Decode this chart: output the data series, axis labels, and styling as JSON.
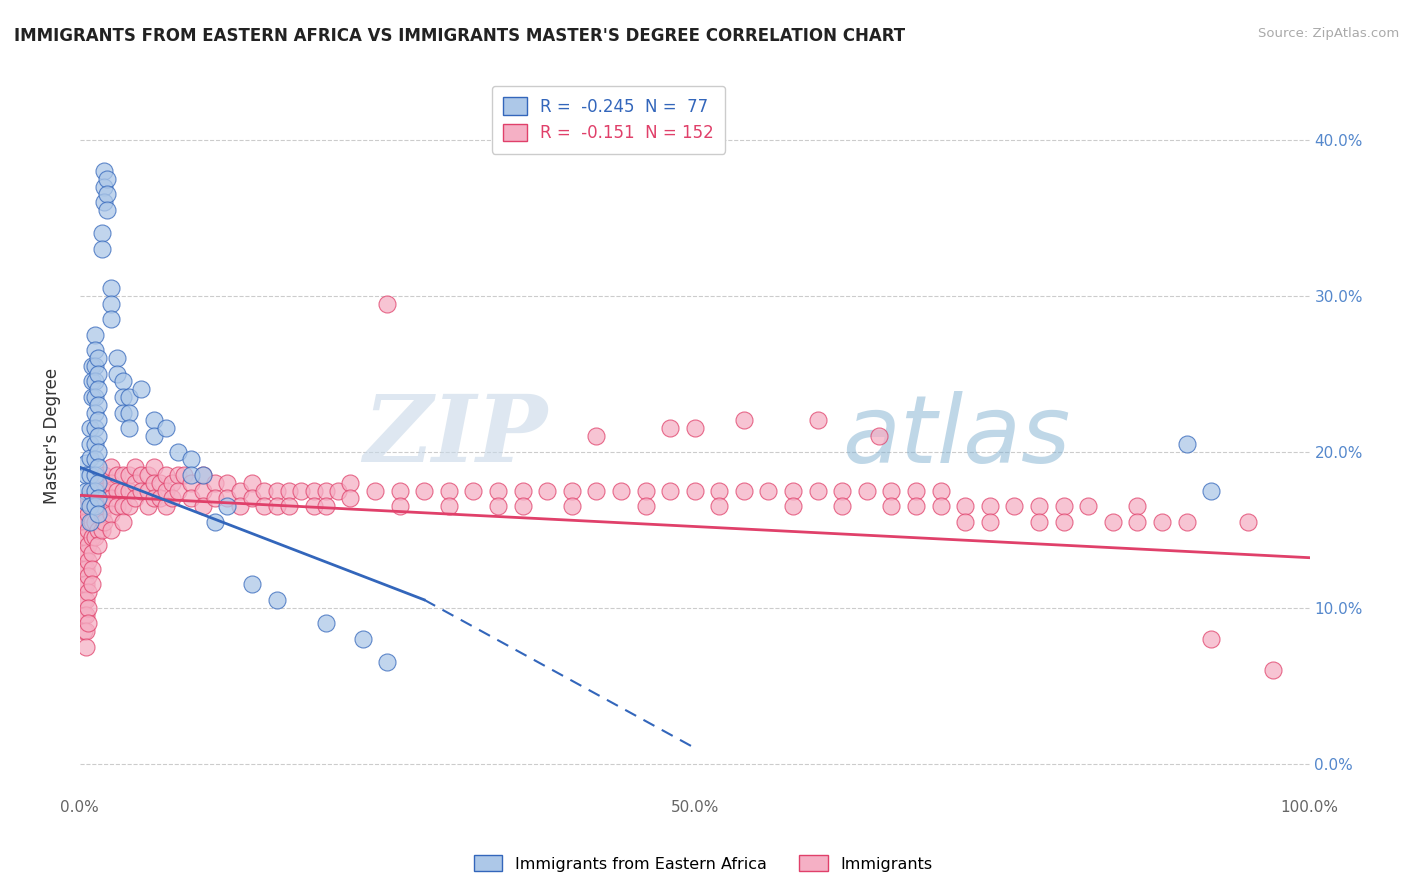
{
  "title": "IMMIGRANTS FROM EASTERN AFRICA VS IMMIGRANTS MASTER'S DEGREE CORRELATION CHART",
  "source": "Source: ZipAtlas.com",
  "ylabel": "Master's Degree",
  "xlim": [
    0.0,
    1.0
  ],
  "ylim": [
    -0.02,
    0.44
  ],
  "right_yticks": [
    0.0,
    0.1,
    0.2,
    0.3,
    0.4
  ],
  "right_yticklabels": [
    "0.0%",
    "10.0%",
    "20.0%",
    "30.0%",
    "40.0%"
  ],
  "xticks": [
    0.0,
    0.25,
    0.5,
    0.75,
    1.0
  ],
  "xticklabels": [
    "0.0%",
    "",
    "50.0%",
    "",
    "100.0%"
  ],
  "blue_R": -0.245,
  "blue_N": 77,
  "pink_R": -0.151,
  "pink_N": 152,
  "blue_color": "#adc8e8",
  "pink_color": "#f5b0c5",
  "blue_line_color": "#3366bb",
  "pink_line_color": "#e0406a",
  "watermark_zip": "ZIP",
  "watermark_atlas": "atlas",
  "legend_label_blue": "Immigrants from Eastern Africa",
  "legend_label_pink": "Immigrants",
  "blue_line_solid": [
    [
      0.0,
      0.19
    ],
    [
      0.28,
      0.105
    ]
  ],
  "blue_line_dash": [
    [
      0.28,
      0.105
    ],
    [
      0.5,
      0.01
    ]
  ],
  "pink_line": [
    [
      0.0,
      0.172
    ],
    [
      1.0,
      0.132
    ]
  ],
  "blue_scatter": [
    [
      0.005,
      0.193
    ],
    [
      0.005,
      0.185
    ],
    [
      0.005,
      0.175
    ],
    [
      0.005,
      0.168
    ],
    [
      0.008,
      0.215
    ],
    [
      0.008,
      0.205
    ],
    [
      0.008,
      0.196
    ],
    [
      0.008,
      0.185
    ],
    [
      0.008,
      0.175
    ],
    [
      0.008,
      0.165
    ],
    [
      0.008,
      0.155
    ],
    [
      0.01,
      0.255
    ],
    [
      0.01,
      0.245
    ],
    [
      0.01,
      0.235
    ],
    [
      0.012,
      0.275
    ],
    [
      0.012,
      0.265
    ],
    [
      0.012,
      0.255
    ],
    [
      0.012,
      0.245
    ],
    [
      0.012,
      0.235
    ],
    [
      0.012,
      0.225
    ],
    [
      0.012,
      0.215
    ],
    [
      0.012,
      0.205
    ],
    [
      0.012,
      0.195
    ],
    [
      0.012,
      0.185
    ],
    [
      0.012,
      0.175
    ],
    [
      0.012,
      0.165
    ],
    [
      0.015,
      0.26
    ],
    [
      0.015,
      0.25
    ],
    [
      0.015,
      0.24
    ],
    [
      0.015,
      0.23
    ],
    [
      0.015,
      0.22
    ],
    [
      0.015,
      0.21
    ],
    [
      0.015,
      0.2
    ],
    [
      0.015,
      0.19
    ],
    [
      0.015,
      0.18
    ],
    [
      0.015,
      0.17
    ],
    [
      0.015,
      0.16
    ],
    [
      0.018,
      0.34
    ],
    [
      0.018,
      0.33
    ],
    [
      0.02,
      0.38
    ],
    [
      0.02,
      0.37
    ],
    [
      0.02,
      0.36
    ],
    [
      0.022,
      0.375
    ],
    [
      0.022,
      0.365
    ],
    [
      0.022,
      0.355
    ],
    [
      0.025,
      0.305
    ],
    [
      0.025,
      0.295
    ],
    [
      0.025,
      0.285
    ],
    [
      0.03,
      0.26
    ],
    [
      0.03,
      0.25
    ],
    [
      0.035,
      0.245
    ],
    [
      0.035,
      0.235
    ],
    [
      0.035,
      0.225
    ],
    [
      0.04,
      0.235
    ],
    [
      0.04,
      0.225
    ],
    [
      0.04,
      0.215
    ],
    [
      0.05,
      0.24
    ],
    [
      0.06,
      0.22
    ],
    [
      0.06,
      0.21
    ],
    [
      0.07,
      0.215
    ],
    [
      0.08,
      0.2
    ],
    [
      0.09,
      0.195
    ],
    [
      0.09,
      0.185
    ],
    [
      0.1,
      0.185
    ],
    [
      0.11,
      0.155
    ],
    [
      0.12,
      0.165
    ],
    [
      0.14,
      0.115
    ],
    [
      0.16,
      0.105
    ],
    [
      0.2,
      0.09
    ],
    [
      0.23,
      0.08
    ],
    [
      0.25,
      0.065
    ],
    [
      0.9,
      0.205
    ],
    [
      0.92,
      0.175
    ]
  ],
  "pink_scatter": [
    [
      0.003,
      0.155
    ],
    [
      0.003,
      0.145
    ],
    [
      0.003,
      0.135
    ],
    [
      0.003,
      0.125
    ],
    [
      0.003,
      0.115
    ],
    [
      0.003,
      0.105
    ],
    [
      0.003,
      0.095
    ],
    [
      0.003,
      0.085
    ],
    [
      0.005,
      0.165
    ],
    [
      0.005,
      0.155
    ],
    [
      0.005,
      0.145
    ],
    [
      0.005,
      0.135
    ],
    [
      0.005,
      0.125
    ],
    [
      0.005,
      0.115
    ],
    [
      0.005,
      0.105
    ],
    [
      0.005,
      0.095
    ],
    [
      0.005,
      0.085
    ],
    [
      0.005,
      0.075
    ],
    [
      0.007,
      0.17
    ],
    [
      0.007,
      0.16
    ],
    [
      0.007,
      0.15
    ],
    [
      0.007,
      0.14
    ],
    [
      0.007,
      0.13
    ],
    [
      0.007,
      0.12
    ],
    [
      0.007,
      0.11
    ],
    [
      0.007,
      0.1
    ],
    [
      0.007,
      0.09
    ],
    [
      0.01,
      0.175
    ],
    [
      0.01,
      0.165
    ],
    [
      0.01,
      0.155
    ],
    [
      0.01,
      0.145
    ],
    [
      0.01,
      0.135
    ],
    [
      0.01,
      0.125
    ],
    [
      0.01,
      0.115
    ],
    [
      0.012,
      0.175
    ],
    [
      0.012,
      0.165
    ],
    [
      0.012,
      0.155
    ],
    [
      0.012,
      0.145
    ],
    [
      0.015,
      0.18
    ],
    [
      0.015,
      0.17
    ],
    [
      0.015,
      0.16
    ],
    [
      0.015,
      0.15
    ],
    [
      0.015,
      0.14
    ],
    [
      0.018,
      0.18
    ],
    [
      0.018,
      0.17
    ],
    [
      0.018,
      0.16
    ],
    [
      0.018,
      0.15
    ],
    [
      0.02,
      0.185
    ],
    [
      0.02,
      0.175
    ],
    [
      0.02,
      0.165
    ],
    [
      0.02,
      0.155
    ],
    [
      0.025,
      0.19
    ],
    [
      0.025,
      0.18
    ],
    [
      0.025,
      0.17
    ],
    [
      0.025,
      0.16
    ],
    [
      0.025,
      0.15
    ],
    [
      0.03,
      0.185
    ],
    [
      0.03,
      0.175
    ],
    [
      0.03,
      0.165
    ],
    [
      0.035,
      0.185
    ],
    [
      0.035,
      0.175
    ],
    [
      0.035,
      0.165
    ],
    [
      0.035,
      0.155
    ],
    [
      0.04,
      0.185
    ],
    [
      0.04,
      0.175
    ],
    [
      0.04,
      0.165
    ],
    [
      0.045,
      0.19
    ],
    [
      0.045,
      0.18
    ],
    [
      0.045,
      0.17
    ],
    [
      0.05,
      0.185
    ],
    [
      0.05,
      0.175
    ],
    [
      0.055,
      0.185
    ],
    [
      0.055,
      0.175
    ],
    [
      0.055,
      0.165
    ],
    [
      0.06,
      0.19
    ],
    [
      0.06,
      0.18
    ],
    [
      0.06,
      0.17
    ],
    [
      0.065,
      0.18
    ],
    [
      0.065,
      0.17
    ],
    [
      0.07,
      0.185
    ],
    [
      0.07,
      0.175
    ],
    [
      0.07,
      0.165
    ],
    [
      0.075,
      0.18
    ],
    [
      0.075,
      0.17
    ],
    [
      0.08,
      0.185
    ],
    [
      0.08,
      0.175
    ],
    [
      0.085,
      0.185
    ],
    [
      0.09,
      0.18
    ],
    [
      0.09,
      0.17
    ],
    [
      0.1,
      0.185
    ],
    [
      0.1,
      0.175
    ],
    [
      0.1,
      0.165
    ],
    [
      0.11,
      0.18
    ],
    [
      0.11,
      0.17
    ],
    [
      0.12,
      0.18
    ],
    [
      0.12,
      0.17
    ],
    [
      0.13,
      0.175
    ],
    [
      0.13,
      0.165
    ],
    [
      0.14,
      0.18
    ],
    [
      0.14,
      0.17
    ],
    [
      0.15,
      0.175
    ],
    [
      0.15,
      0.165
    ],
    [
      0.16,
      0.175
    ],
    [
      0.16,
      0.165
    ],
    [
      0.17,
      0.175
    ],
    [
      0.17,
      0.165
    ],
    [
      0.18,
      0.175
    ],
    [
      0.19,
      0.175
    ],
    [
      0.19,
      0.165
    ],
    [
      0.2,
      0.175
    ],
    [
      0.2,
      0.165
    ],
    [
      0.21,
      0.175
    ],
    [
      0.22,
      0.18
    ],
    [
      0.22,
      0.17
    ],
    [
      0.24,
      0.175
    ],
    [
      0.25,
      0.295
    ],
    [
      0.26,
      0.175
    ],
    [
      0.26,
      0.165
    ],
    [
      0.28,
      0.175
    ],
    [
      0.3,
      0.175
    ],
    [
      0.3,
      0.165
    ],
    [
      0.32,
      0.175
    ],
    [
      0.34,
      0.175
    ],
    [
      0.34,
      0.165
    ],
    [
      0.36,
      0.175
    ],
    [
      0.36,
      0.165
    ],
    [
      0.38,
      0.175
    ],
    [
      0.4,
      0.175
    ],
    [
      0.4,
      0.165
    ],
    [
      0.42,
      0.21
    ],
    [
      0.42,
      0.175
    ],
    [
      0.44,
      0.175
    ],
    [
      0.46,
      0.175
    ],
    [
      0.46,
      0.165
    ],
    [
      0.48,
      0.215
    ],
    [
      0.48,
      0.175
    ],
    [
      0.5,
      0.215
    ],
    [
      0.5,
      0.175
    ],
    [
      0.52,
      0.175
    ],
    [
      0.52,
      0.165
    ],
    [
      0.54,
      0.22
    ],
    [
      0.54,
      0.175
    ],
    [
      0.56,
      0.175
    ],
    [
      0.58,
      0.175
    ],
    [
      0.58,
      0.165
    ],
    [
      0.6,
      0.22
    ],
    [
      0.6,
      0.175
    ],
    [
      0.62,
      0.175
    ],
    [
      0.62,
      0.165
    ],
    [
      0.64,
      0.175
    ],
    [
      0.65,
      0.21
    ],
    [
      0.66,
      0.175
    ],
    [
      0.66,
      0.165
    ],
    [
      0.68,
      0.175
    ],
    [
      0.68,
      0.165
    ],
    [
      0.7,
      0.175
    ],
    [
      0.7,
      0.165
    ],
    [
      0.72,
      0.165
    ],
    [
      0.72,
      0.155
    ],
    [
      0.74,
      0.165
    ],
    [
      0.74,
      0.155
    ],
    [
      0.76,
      0.165
    ],
    [
      0.78,
      0.165
    ],
    [
      0.78,
      0.155
    ],
    [
      0.8,
      0.165
    ],
    [
      0.8,
      0.155
    ],
    [
      0.82,
      0.165
    ],
    [
      0.84,
      0.155
    ],
    [
      0.86,
      0.165
    ],
    [
      0.86,
      0.155
    ],
    [
      0.88,
      0.155
    ],
    [
      0.9,
      0.155
    ],
    [
      0.92,
      0.08
    ],
    [
      0.95,
      0.155
    ],
    [
      0.97,
      0.06
    ]
  ]
}
